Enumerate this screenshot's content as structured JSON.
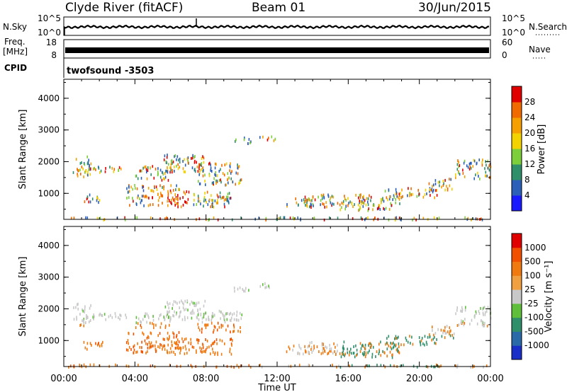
{
  "header": {
    "station": "Clyde River (fitACF)",
    "beam": "Beam 01",
    "date": "30/Jun/2015"
  },
  "nsky_panel": {
    "left_label": "N.Sky",
    "left_ticks": [
      "10^5",
      "10^0"
    ],
    "right_label": "N.Search",
    "right_ticks": [
      "10^5",
      "10^0"
    ]
  },
  "freq_panel": {
    "left_label_1": "Freq.",
    "left_label_2": "[MHz]",
    "left_ticks": [
      "18",
      "8"
    ],
    "right_label": "Nave",
    "right_ticks": [
      "60",
      "0"
    ]
  },
  "cpid_panel": {
    "label": "CPID",
    "program": "twofsound -3503"
  },
  "x_axis": {
    "ticks": [
      "00:00",
      "04:00",
      "08:00",
      "12:00",
      "16:00",
      "20:00",
      "00:00"
    ],
    "label": "Time UT"
  },
  "chart_data": [
    {
      "type": "heatmap",
      "quantity": "power",
      "xlabel": "Time UT",
      "ylabel": "Slant Range [km]",
      "ylim": [
        180,
        4600
      ],
      "xlim_hours": [
        0,
        24
      ],
      "yticks": [
        "1000",
        "2000",
        "3000",
        "4000"
      ],
      "colorbar_label": "Power [dB]",
      "colorbar_ticks": [
        "4",
        "8",
        "12",
        "16",
        "20",
        "24",
        "28"
      ],
      "colorbar_colors": [
        "#1a1aff",
        "#2b5fb8",
        "#2f8f6a",
        "#7ccf3a",
        "#f2d200",
        "#f5a000",
        "#f06a00",
        "#e00000"
      ]
    },
    {
      "type": "heatmap",
      "quantity": "velocity",
      "xlabel": "Time UT",
      "ylabel": "Slant Range [km]",
      "ylim": [
        180,
        4600
      ],
      "xlim_hours": [
        0,
        24
      ],
      "yticks": [
        "1000",
        "2000",
        "3000",
        "4000"
      ],
      "colorbar_label": "Velocity [m s⁻¹]",
      "colorbar_ticks": [
        "1000",
        "500",
        "100",
        "25",
        "-25",
        "-100",
        "-500",
        "-1000"
      ],
      "colorbar_colors": [
        "#1a2fc8",
        "#2b6aa8",
        "#2f8f6a",
        "#5fbf3a",
        "#c8c8c8",
        "#f0a040",
        "#f07a10",
        "#f05000",
        "#e00000"
      ]
    }
  ]
}
